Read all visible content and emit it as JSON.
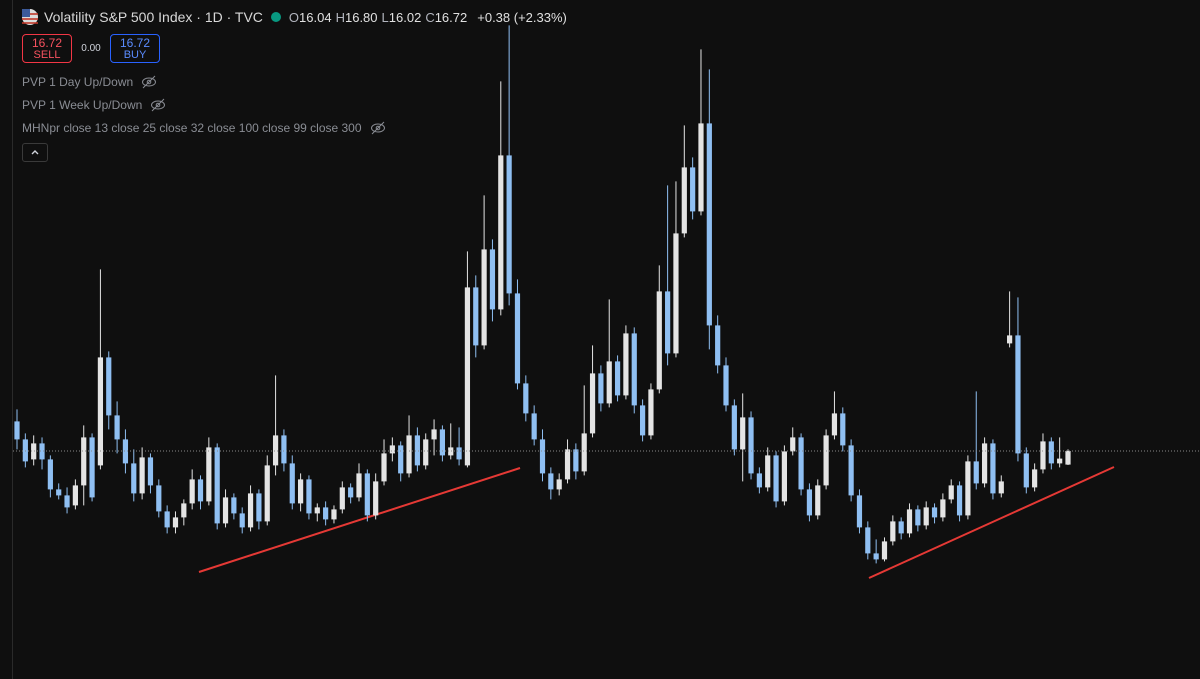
{
  "header": {
    "title": "Volatility S&P 500 Index · 1D · TVC",
    "ohlc_labels": [
      "O",
      "H",
      "L",
      "C"
    ],
    "ohlc_values": [
      "16.04",
      "16.80",
      "16.02",
      "16.72"
    ],
    "change": "+0.38 (+2.33%)"
  },
  "trade": {
    "sell_price": "16.72",
    "sell": "SELL",
    "spread": "0.00",
    "buy_price": "16.72",
    "buy": "BUY"
  },
  "indicators": [
    "PVP 1 Day Up/Down",
    "PVP 1 Week Up/Down",
    "MHNpr close 13 close 25 close 32 close 100 close 99 close 300"
  ],
  "chart_data": {
    "type": "candlestick",
    "ylim": [
      5.32,
      39.27
    ],
    "up_color": "#e4e4e4",
    "down_color": "#8fbff2",
    "last_price_line": true,
    "ohlc": [
      [
        18.2,
        18.8,
        16.8,
        17.3
      ],
      [
        17.3,
        17.6,
        15.9,
        16.2
      ],
      [
        16.3,
        17.5,
        16,
        17.1
      ],
      [
        17.1,
        17.4,
        15.8,
        16.3
      ],
      [
        16.3,
        16.5,
        14.4,
        14.8
      ],
      [
        14.8,
        15.1,
        14.3,
        14.5
      ],
      [
        14.5,
        14.9,
        13.6,
        13.9
      ],
      [
        14,
        15.3,
        13.8,
        15
      ],
      [
        15,
        18,
        14,
        17.4
      ],
      [
        17.4,
        17.6,
        14.2,
        14.4
      ],
      [
        16,
        25.8,
        15.8,
        21.4
      ],
      [
        21.4,
        21.7,
        17.8,
        18.5
      ],
      [
        18.5,
        19.2,
        16.6,
        17.3
      ],
      [
        17.3,
        17.8,
        15.6,
        16.1
      ],
      [
        16.1,
        16.8,
        14.2,
        14.6
      ],
      [
        14.6,
        16.9,
        14.3,
        16.4
      ],
      [
        16.4,
        16.6,
        14.6,
        15
      ],
      [
        15,
        15.3,
        13.4,
        13.7
      ],
      [
        13.7,
        14,
        12.6,
        12.9
      ],
      [
        12.9,
        13.7,
        12.6,
        13.4
      ],
      [
        13.4,
        14.3,
        13,
        14.1
      ],
      [
        14.1,
        15.8,
        13.8,
        15.3
      ],
      [
        15.3,
        15.5,
        13.8,
        14.2
      ],
      [
        14.2,
        17.4,
        14,
        16.9
      ],
      [
        16.9,
        17.1,
        12.8,
        13.1
      ],
      [
        13.1,
        14.8,
        12.9,
        14.4
      ],
      [
        14.4,
        14.6,
        13.3,
        13.6
      ],
      [
        13.6,
        13.9,
        12.6,
        12.9
      ],
      [
        12.9,
        15,
        12.7,
        14.6
      ],
      [
        14.6,
        14.8,
        12.8,
        13.2
      ],
      [
        13.2,
        16.5,
        13,
        16
      ],
      [
        16,
        20.5,
        15.5,
        17.5
      ],
      [
        17.5,
        17.8,
        15.7,
        16.1
      ],
      [
        16.1,
        16.5,
        13.8,
        14.1
      ],
      [
        14.1,
        15.6,
        13.7,
        15.3
      ],
      [
        15.3,
        15.5,
        13.3,
        13.6
      ],
      [
        13.6,
        14.1,
        13.2,
        13.9
      ],
      [
        13.9,
        14.2,
        13,
        13.3
      ],
      [
        13.3,
        14,
        13.1,
        13.8
      ],
      [
        13.8,
        15.2,
        13.6,
        14.9
      ],
      [
        14.9,
        15.1,
        14.1,
        14.4
      ],
      [
        14.4,
        16.1,
        14.2,
        15.6
      ],
      [
        15.6,
        15.8,
        13.2,
        13.5
      ],
      [
        13.5,
        15.6,
        13.3,
        15.2
      ],
      [
        15.2,
        17.3,
        15,
        16.6
      ],
      [
        16.6,
        17.4,
        16.2,
        17
      ],
      [
        17,
        17.2,
        15.2,
        15.6
      ],
      [
        15.6,
        18.5,
        15.4,
        17.5
      ],
      [
        17.5,
        17.9,
        15.7,
        16
      ],
      [
        16,
        17.6,
        15.8,
        17.3
      ],
      [
        17.3,
        18.3,
        16.5,
        17.8
      ],
      [
        17.8,
        18,
        16.2,
        16.5
      ],
      [
        16.5,
        18.1,
        16.3,
        16.9
      ],
      [
        16.9,
        17.9,
        16,
        16.3
      ],
      [
        16,
        26.7,
        15.9,
        24.9
      ],
      [
        24.9,
        25.5,
        21.4,
        22
      ],
      [
        22,
        29.5,
        21.8,
        26.8
      ],
      [
        26.8,
        27.3,
        23.2,
        23.8
      ],
      [
        23.8,
        35.2,
        23.5,
        31.5
      ],
      [
        31.5,
        38,
        24,
        24.6
      ],
      [
        24.6,
        25.3,
        19.8,
        20.1
      ],
      [
        20.1,
        20.5,
        18.2,
        18.6
      ],
      [
        18.6,
        19,
        17,
        17.3
      ],
      [
        17.3,
        17.8,
        15.2,
        15.6
      ],
      [
        15.6,
        15.9,
        14.3,
        14.8
      ],
      [
        14.8,
        15.6,
        14.5,
        15.3
      ],
      [
        15.3,
        17.3,
        15.1,
        16.8
      ],
      [
        16.8,
        17.1,
        15.3,
        15.7
      ],
      [
        15.7,
        20,
        15.5,
        17.6
      ],
      [
        17.6,
        22,
        17.4,
        20.6
      ],
      [
        20.6,
        21,
        18.7,
        19.1
      ],
      [
        19.1,
        24.3,
        18.9,
        21.2
      ],
      [
        21.2,
        21.5,
        19.2,
        19.5
      ],
      [
        19.5,
        23,
        19.3,
        22.6
      ],
      [
        22.6,
        22.9,
        18.6,
        19
      ],
      [
        19,
        19.3,
        17.2,
        17.5
      ],
      [
        17.5,
        20.1,
        17.3,
        19.8
      ],
      [
        19.8,
        26,
        19.6,
        24.7
      ],
      [
        24.7,
        30,
        21,
        21.6
      ],
      [
        21.6,
        30.2,
        21.4,
        27.6
      ],
      [
        27.6,
        33,
        27.4,
        30.9
      ],
      [
        30.9,
        31.4,
        28.3,
        28.7
      ],
      [
        28.7,
        36.8,
        28.5,
        33.1
      ],
      [
        33.1,
        35.8,
        21.8,
        23
      ],
      [
        23,
        23.5,
        20.6,
        21
      ],
      [
        21,
        21.4,
        18.7,
        19
      ],
      [
        19,
        19.3,
        16.5,
        16.8
      ],
      [
        16.8,
        19.6,
        15.2,
        18.4
      ],
      [
        18.4,
        18.7,
        15.3,
        15.6
      ],
      [
        15.6,
        15.9,
        14.6,
        14.9
      ],
      [
        14.9,
        16.9,
        14.7,
        16.5
      ],
      [
        16.5,
        16.7,
        13.9,
        14.2
      ],
      [
        14.2,
        17,
        14,
        16.7
      ],
      [
        16.7,
        17.9,
        16.5,
        17.4
      ],
      [
        17.4,
        17.6,
        14.5,
        14.8
      ],
      [
        14.8,
        15.1,
        13.2,
        13.5
      ],
      [
        13.5,
        15.3,
        13.3,
        15
      ],
      [
        15,
        17.8,
        14.8,
        17.5
      ],
      [
        17.5,
        19.7,
        17.3,
        18.6
      ],
      [
        18.6,
        18.9,
        16.7,
        17
      ],
      [
        17,
        17.3,
        14.2,
        14.5
      ],
      [
        14.5,
        14.8,
        12.6,
        12.9
      ],
      [
        12.9,
        13.2,
        11.3,
        11.6
      ],
      [
        11.6,
        12.3,
        11.1,
        11.3
      ],
      [
        11.3,
        12.4,
        11.2,
        12.2
      ],
      [
        12.2,
        13.5,
        12,
        13.2
      ],
      [
        13.2,
        13.4,
        12.3,
        12.6
      ],
      [
        12.6,
        14.1,
        12.4,
        13.8
      ],
      [
        13.8,
        14,
        12.7,
        13
      ],
      [
        13,
        14.2,
        12.8,
        13.9
      ],
      [
        13.9,
        14.1,
        13.1,
        13.4
      ],
      [
        13.4,
        14.6,
        13.2,
        14.3
      ],
      [
        14.3,
        15.3,
        14.1,
        15
      ],
      [
        15,
        15.2,
        13.2,
        13.5
      ],
      [
        13.5,
        16.5,
        13.3,
        16.2
      ],
      [
        16.2,
        19.7,
        14.8,
        15.1
      ],
      [
        15.1,
        17.4,
        14.9,
        17.1
      ],
      [
        17.1,
        17.3,
        14.3,
        14.6
      ],
      [
        14.6,
        15.5,
        14.4,
        15.2
      ],
      [
        22.1,
        24.7,
        21.9,
        22.5
      ],
      [
        22.5,
        24.4,
        16.2,
        16.6
      ],
      [
        16.6,
        16.9,
        14.6,
        14.9
      ],
      [
        14.9,
        16.1,
        14.7,
        15.8
      ],
      [
        15.8,
        17.6,
        15.6,
        17.2
      ],
      [
        17.2,
        17.4,
        15.8,
        16.1
      ],
      [
        16.1,
        17.4,
        15.9,
        16.34
      ],
      [
        16.04,
        16.8,
        16.02,
        16.72
      ]
    ]
  }
}
